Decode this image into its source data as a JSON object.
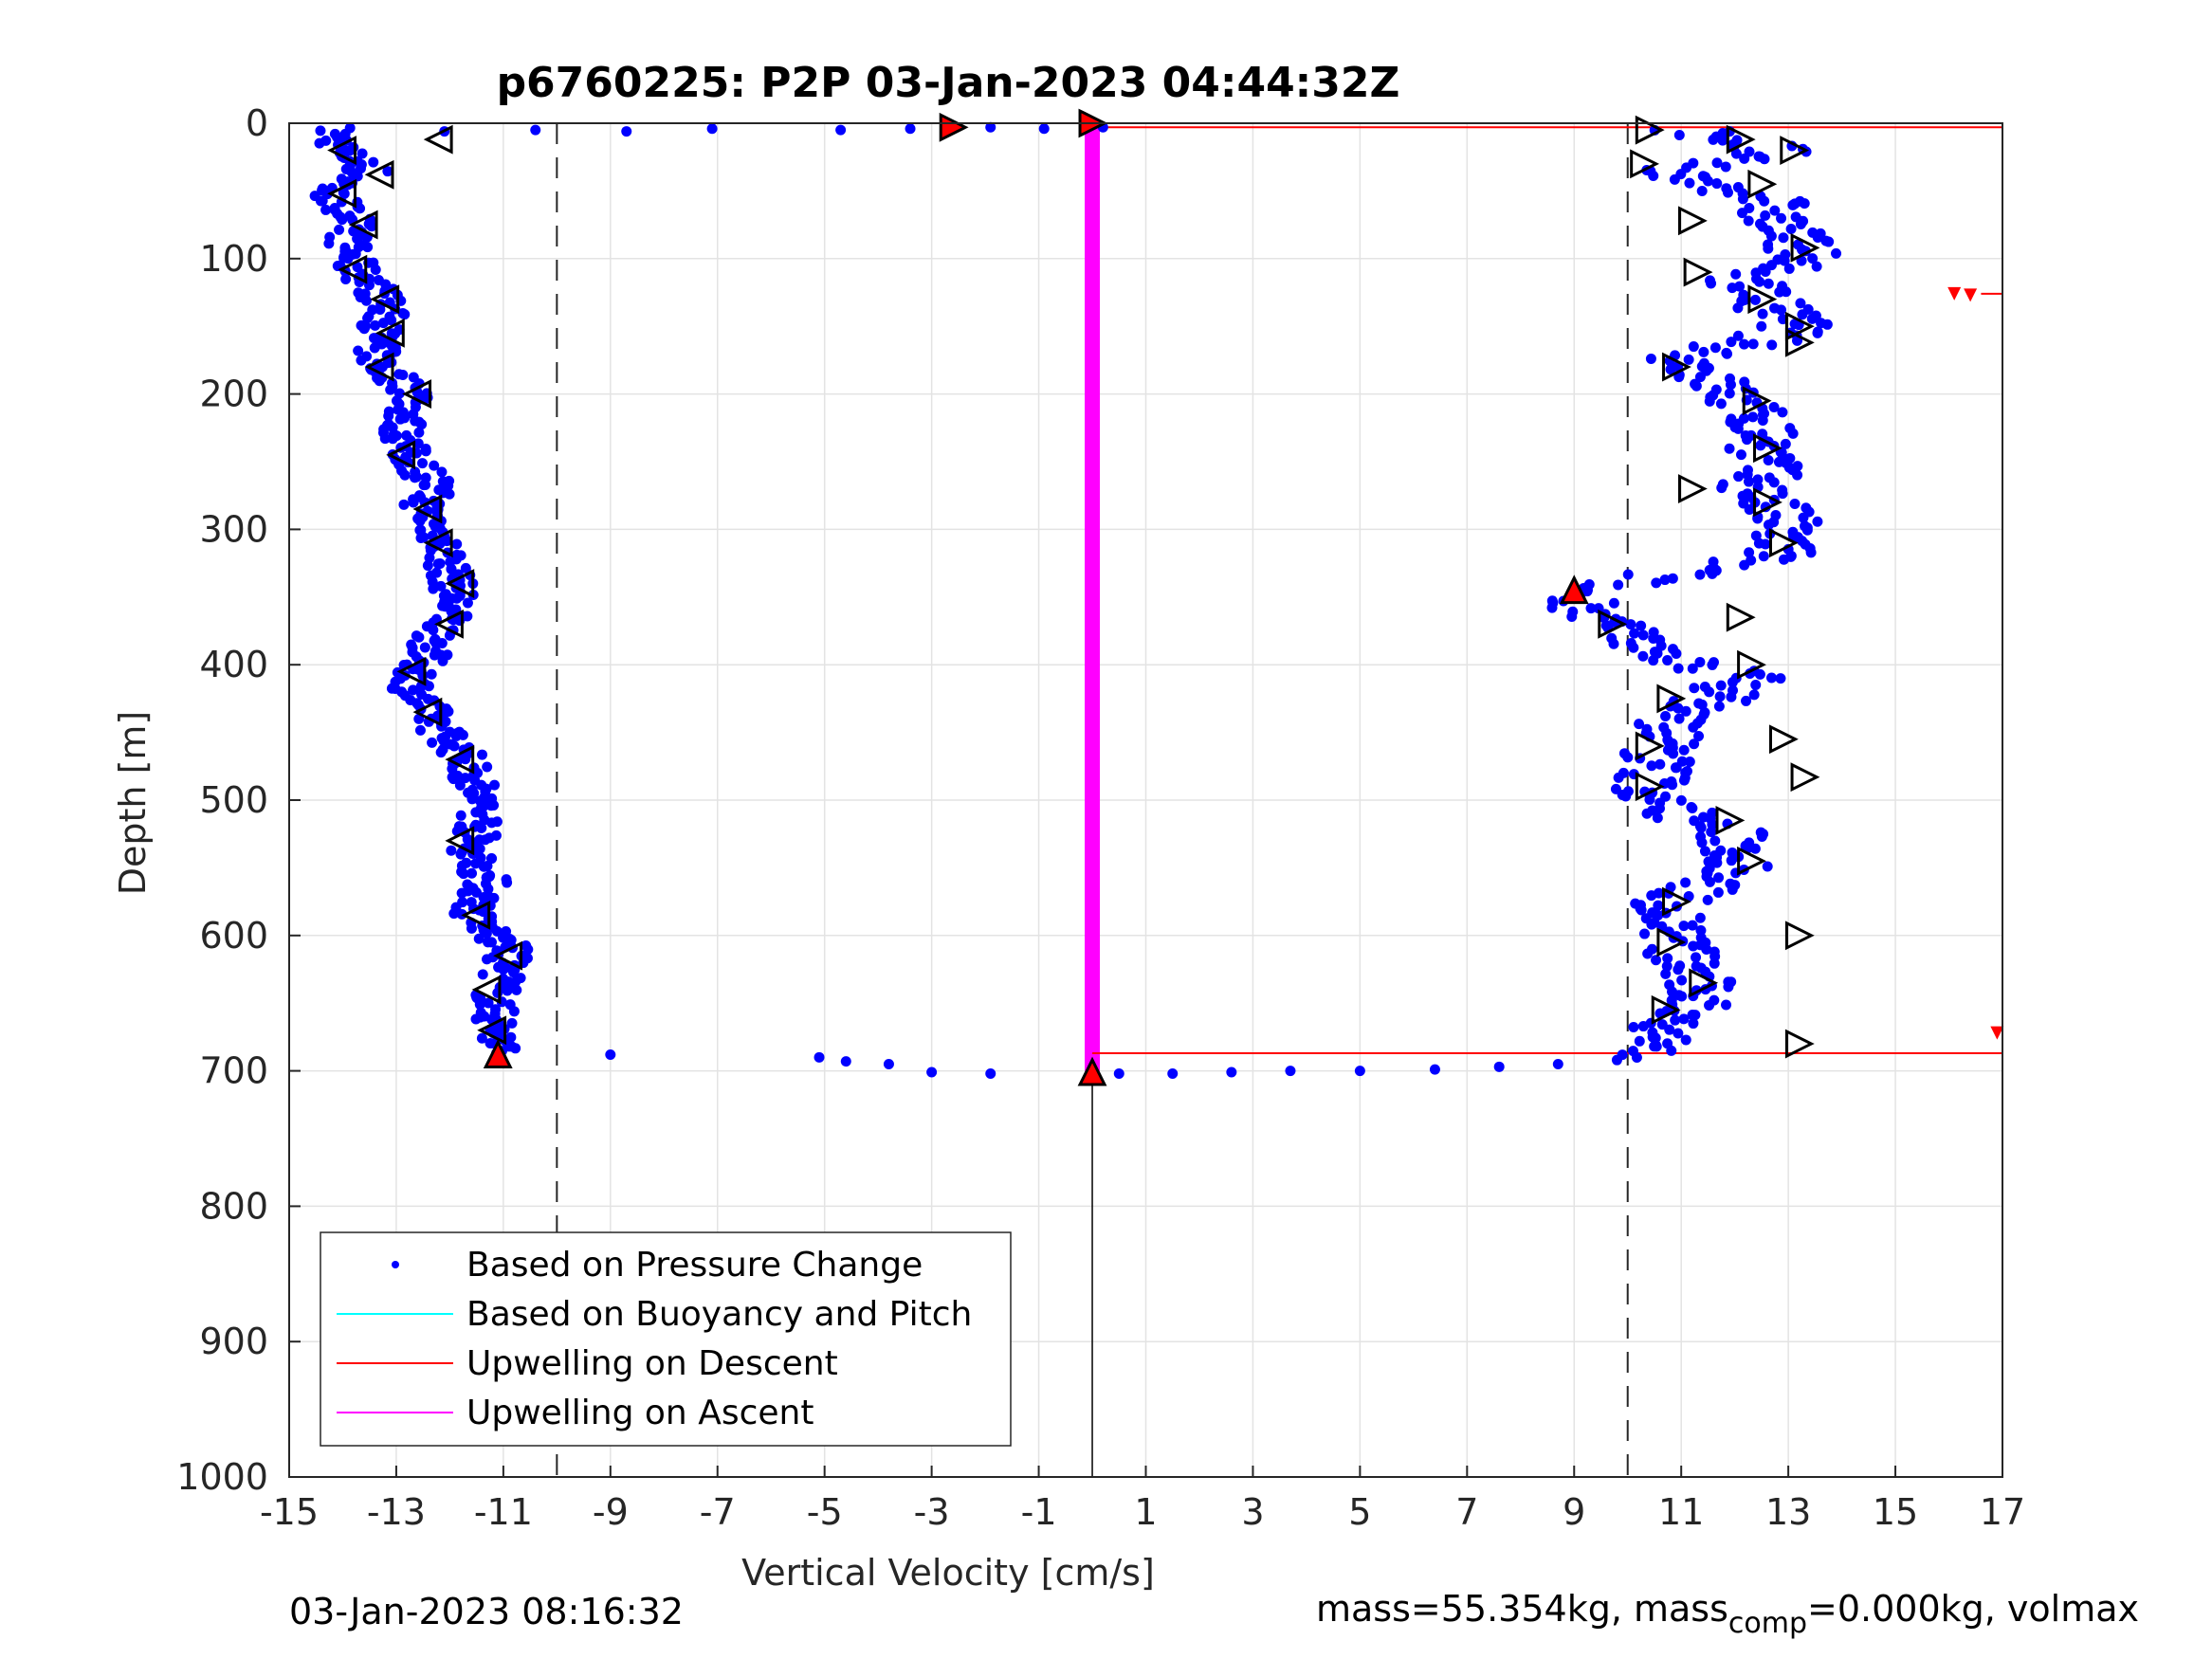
{
  "chart_data": {
    "type": "scatter",
    "title": "p6760225: P2P 03-Jan-2023 04:44:32Z",
    "xlabel": "Vertical Velocity [cm/s]",
    "ylabel": "Depth [m]",
    "xlim": [
      -15,
      17
    ],
    "ylim": [
      0,
      1000
    ],
    "y_reversed": true,
    "grid": true,
    "xticks": [
      "-15",
      "-13",
      "-11",
      "-9",
      "-7",
      "-5",
      "-3",
      "-1",
      "1",
      "3",
      "5",
      "7",
      "9",
      "11",
      "13",
      "15",
      "17"
    ],
    "yticks": [
      "0",
      "100",
      "200",
      "300",
      "400",
      "500",
      "600",
      "700",
      "800",
      "900",
      "1000"
    ],
    "legend_position": "bottom-left",
    "legend": [
      {
        "label": "Based on Pressure Change",
        "color": "#0000ff",
        "marker": "dot"
      },
      {
        "label": "Based on Buoyancy and Pitch",
        "color": "#00ffff",
        "marker": "line"
      },
      {
        "label": "Upwelling on Descent",
        "color": "#ff0000",
        "marker": "line"
      },
      {
        "label": "Upwelling on Ascent",
        "color": "#ff00ff",
        "marker": "line"
      }
    ],
    "reference_lines_x": [
      -10,
      10
    ],
    "upwelling_ascent": {
      "x": 0,
      "depth_range": [
        3,
        700
      ]
    },
    "upwelling_descent": [
      {
        "x": [
          0,
          17
        ],
        "depth": 3
      },
      {
        "x": [
          0,
          17
        ],
        "depth": 687
      },
      {
        "x": [
          16.6,
          17
        ],
        "depth": 126
      }
    ],
    "zero_line": {
      "x": 0,
      "depth_range": [
        700,
        1000
      ]
    },
    "descent_series": [
      {
        "depth": 5,
        "v": -14.2
      },
      {
        "depth": 20,
        "v": -14.0
      },
      {
        "depth": 35,
        "v": -13.5
      },
      {
        "depth": 50,
        "v": -14.3
      },
      {
        "depth": 70,
        "v": -13.8
      },
      {
        "depth": 90,
        "v": -13.9
      },
      {
        "depth": 105,
        "v": -13.8
      },
      {
        "depth": 125,
        "v": -13.3
      },
      {
        "depth": 145,
        "v": -13.2
      },
      {
        "depth": 165,
        "v": -13.4
      },
      {
        "depth": 180,
        "v": -13.3
      },
      {
        "depth": 200,
        "v": -12.6
      },
      {
        "depth": 220,
        "v": -12.9
      },
      {
        "depth": 245,
        "v": -12.8
      },
      {
        "depth": 265,
        "v": -12.3
      },
      {
        "depth": 285,
        "v": -12.5
      },
      {
        "depth": 305,
        "v": -12.2
      },
      {
        "depth": 330,
        "v": -12.0
      },
      {
        "depth": 350,
        "v": -11.9
      },
      {
        "depth": 370,
        "v": -12.1
      },
      {
        "depth": 395,
        "v": -12.5
      },
      {
        "depth": 420,
        "v": -12.7
      },
      {
        "depth": 440,
        "v": -12.3
      },
      {
        "depth": 465,
        "v": -11.8
      },
      {
        "depth": 490,
        "v": -11.5
      },
      {
        "depth": 515,
        "v": -11.4
      },
      {
        "depth": 535,
        "v": -11.6
      },
      {
        "depth": 560,
        "v": -11.3
      },
      {
        "depth": 585,
        "v": -11.6
      },
      {
        "depth": 610,
        "v": -10.9
      },
      {
        "depth": 630,
        "v": -11.0
      },
      {
        "depth": 650,
        "v": -11.2
      },
      {
        "depth": 670,
        "v": -11.1
      },
      {
        "depth": 688,
        "v": -11.1
      }
    ],
    "ascent_series": [
      {
        "depth": 5,
        "v": 11.2
      },
      {
        "depth": 20,
        "v": 12.8
      },
      {
        "depth": 35,
        "v": 10.6
      },
      {
        "depth": 55,
        "v": 12.6
      },
      {
        "depth": 75,
        "v": 12.8
      },
      {
        "depth": 95,
        "v": 13.4
      },
      {
        "depth": 115,
        "v": 12.2
      },
      {
        "depth": 135,
        "v": 12.6
      },
      {
        "depth": 150,
        "v": 13.3
      },
      {
        "depth": 175,
        "v": 11.1
      },
      {
        "depth": 195,
        "v": 11.7
      },
      {
        "depth": 220,
        "v": 12.5
      },
      {
        "depth": 245,
        "v": 12.6
      },
      {
        "depth": 270,
        "v": 12.4
      },
      {
        "depth": 295,
        "v": 12.9
      },
      {
        "depth": 320,
        "v": 12.8
      },
      {
        "depth": 345,
        "v": 9.0
      },
      {
        "depth": 370,
        "v": 9.6
      },
      {
        "depth": 390,
        "v": 10.4
      },
      {
        "depth": 410,
        "v": 12.3
      },
      {
        "depth": 440,
        "v": 10.9
      },
      {
        "depth": 465,
        "v": 10.6
      },
      {
        "depth": 500,
        "v": 10.4
      },
      {
        "depth": 525,
        "v": 11.9
      },
      {
        "depth": 550,
        "v": 12.2
      },
      {
        "depth": 575,
        "v": 10.8
      },
      {
        "depth": 600,
        "v": 10.9
      },
      {
        "depth": 625,
        "v": 11.1
      },
      {
        "depth": 645,
        "v": 11.4
      },
      {
        "depth": 665,
        "v": 10.9
      },
      {
        "depth": 690,
        "v": 10.3
      }
    ],
    "surface_series": [
      {
        "depth": 3,
        "v": 0.2
      },
      {
        "depth": 4,
        "v": -0.9
      },
      {
        "depth": 3,
        "v": -1.9
      },
      {
        "depth": 4,
        "v": -3.4
      },
      {
        "depth": 5,
        "v": -4.7
      },
      {
        "depth": 4,
        "v": -7.1
      },
      {
        "depth": 6,
        "v": -8.7
      },
      {
        "depth": 5,
        "v": -10.4
      },
      {
        "depth": 6,
        "v": -12.1
      }
    ],
    "bottom_series": [
      {
        "depth": 702,
        "v": 0.5
      },
      {
        "depth": 702,
        "v": 1.5
      },
      {
        "depth": 701,
        "v": 2.6
      },
      {
        "depth": 700,
        "v": 3.7
      },
      {
        "depth": 700,
        "v": 5.0
      },
      {
        "depth": 699,
        "v": 6.4
      },
      {
        "depth": 697,
        "v": 7.6
      },
      {
        "depth": 695,
        "v": 8.7
      },
      {
        "depth": 692,
        "v": 9.8
      },
      {
        "depth": 702,
        "v": -1.9
      },
      {
        "depth": 701,
        "v": -3.0
      },
      {
        "depth": 695,
        "v": -3.8
      },
      {
        "depth": 693,
        "v": -4.6
      },
      {
        "depth": 690,
        "v": -5.1
      },
      {
        "depth": 688,
        "v": -9.0
      }
    ],
    "descent_markers": [
      {
        "depth": 20,
        "v": -14.0
      },
      {
        "depth": 38,
        "v": -13.3
      },
      {
        "depth": 52,
        "v": -14.0
      },
      {
        "depth": 75,
        "v": -13.6
      },
      {
        "depth": 108,
        "v": -13.8
      },
      {
        "depth": 130,
        "v": -13.2
      },
      {
        "depth": 155,
        "v": -13.1
      },
      {
        "depth": 180,
        "v": -13.3
      },
      {
        "depth": 200,
        "v": -12.6
      },
      {
        "depth": 245,
        "v": -12.9
      },
      {
        "depth": 285,
        "v": -12.4
      },
      {
        "depth": 310,
        "v": -12.2
      },
      {
        "depth": 340,
        "v": -11.8
      },
      {
        "depth": 370,
        "v": -12.0
      },
      {
        "depth": 405,
        "v": -12.7
      },
      {
        "depth": 435,
        "v": -12.4
      },
      {
        "depth": 470,
        "v": -11.8
      },
      {
        "depth": 530,
        "v": -11.8
      },
      {
        "depth": 585,
        "v": -11.5
      },
      {
        "depth": 615,
        "v": -10.9
      },
      {
        "depth": 640,
        "v": -11.3
      },
      {
        "depth": 670,
        "v": -11.2
      },
      {
        "depth": 12,
        "v": -12.2
      }
    ],
    "ascent_markers": [
      {
        "depth": 5,
        "v": 10.4
      },
      {
        "depth": 12,
        "v": 12.1
      },
      {
        "depth": 20,
        "v": 13.1
      },
      {
        "depth": 30,
        "v": 10.3
      },
      {
        "depth": 45,
        "v": 12.5
      },
      {
        "depth": 72,
        "v": 11.2
      },
      {
        "depth": 92,
        "v": 13.3
      },
      {
        "depth": 110,
        "v": 11.3
      },
      {
        "depth": 130,
        "v": 12.5
      },
      {
        "depth": 150,
        "v": 13.2
      },
      {
        "depth": 162,
        "v": 13.2
      },
      {
        "depth": 180,
        "v": 10.9
      },
      {
        "depth": 205,
        "v": 12.4
      },
      {
        "depth": 240,
        "v": 12.6
      },
      {
        "depth": 270,
        "v": 11.2
      },
      {
        "depth": 280,
        "v": 12.6
      },
      {
        "depth": 310,
        "v": 12.9
      },
      {
        "depth": 370,
        "v": 9.7
      },
      {
        "depth": 365,
        "v": 12.1
      },
      {
        "depth": 400,
        "v": 12.3
      },
      {
        "depth": 425,
        "v": 10.8
      },
      {
        "depth": 455,
        "v": 12.9
      },
      {
        "depth": 460,
        "v": 10.4
      },
      {
        "depth": 490,
        "v": 10.4
      },
      {
        "depth": 483,
        "v": 13.3
      },
      {
        "depth": 515,
        "v": 11.9
      },
      {
        "depth": 545,
        "v": 12.3
      },
      {
        "depth": 575,
        "v": 10.9
      },
      {
        "depth": 600,
        "v": 13.2
      },
      {
        "depth": 605,
        "v": 10.8
      },
      {
        "depth": 635,
        "v": 11.4
      },
      {
        "depth": 655,
        "v": 10.7
      },
      {
        "depth": 680,
        "v": 13.2
      }
    ],
    "red_markers": [
      {
        "depth": 3,
        "v": -2.6,
        "dir": "right"
      },
      {
        "depth": 0,
        "v": 0.0,
        "dir": "right"
      },
      {
        "depth": 345,
        "v": 9.0,
        "dir": "up"
      },
      {
        "depth": 688,
        "v": -11.1,
        "dir": "up"
      },
      {
        "depth": 701,
        "v": 0.0,
        "dir": "up"
      }
    ],
    "red_small_markers": [
      {
        "depth": 126,
        "v": 16.1
      },
      {
        "depth": 127,
        "v": 16.4
      },
      {
        "depth": 672,
        "v": 16.9
      }
    ]
  },
  "footer": {
    "left": "03-Jan-2023 08:16:32",
    "right_part1": "mass=55.354kg, mass",
    "right_sub": "comp",
    "right_part2": "=0.000kg, volmax"
  }
}
